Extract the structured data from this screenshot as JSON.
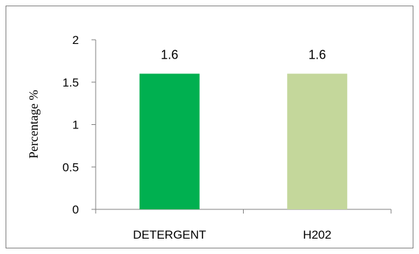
{
  "chart_data": {
    "type": "bar",
    "categories": [
      "DETERGENT",
      "H202"
    ],
    "values": [
      1.6,
      1.6
    ],
    "data_labels": [
      "1.6",
      "1.6"
    ],
    "bar_colors": [
      "#00b050",
      "#c4d79b"
    ],
    "title": "",
    "xlabel": "",
    "ylabel": "Percentage %",
    "ylim": [
      0,
      2
    ],
    "yticks": [
      0,
      0.5,
      1,
      1.5,
      2
    ],
    "ytick_labels": [
      "0",
      "0.5",
      "1",
      "1.5",
      "2"
    ],
    "grid": false,
    "legend": "none"
  }
}
